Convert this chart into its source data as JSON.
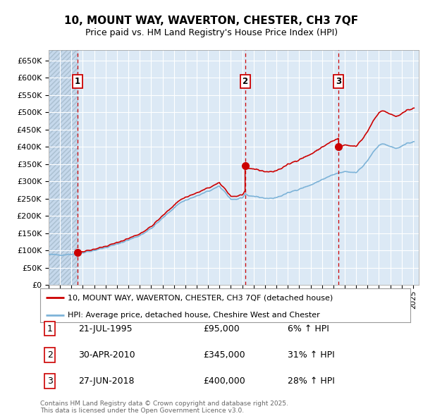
{
  "title": "10, MOUNT WAY, WAVERTON, CHESTER, CH3 7QF",
  "subtitle": "Price paid vs. HM Land Registry's House Price Index (HPI)",
  "legend_line1": "10, MOUNT WAY, WAVERTON, CHESTER, CH3 7QF (detached house)",
  "legend_line2": "HPI: Average price, detached house, Cheshire West and Chester",
  "sale1_date": "21-JUL-1995",
  "sale1_price": 95000,
  "sale1_label": "6% ↑ HPI",
  "sale2_date": "30-APR-2010",
  "sale2_price": 345000,
  "sale2_label": "31% ↑ HPI",
  "sale3_date": "27-JUN-2018",
  "sale3_price": 400000,
  "sale3_label": "28% ↑ HPI",
  "footer": "Contains HM Land Registry data © Crown copyright and database right 2025.\nThis data is licensed under the Open Government Licence v3.0.",
  "ylim": [
    0,
    680000
  ],
  "yticks": [
    0,
    50000,
    100000,
    150000,
    200000,
    250000,
    300000,
    350000,
    400000,
    450000,
    500000,
    550000,
    600000,
    650000
  ],
  "background_color": "#ffffff",
  "plot_bg_color": "#dce9f5",
  "grid_color": "#ffffff",
  "hatch_color": "#c5d8eb",
  "hpi_color": "#7db3d8",
  "sale_color": "#cc0000",
  "vline_color": "#cc0000",
  "marker_color": "#cc0000",
  "sale1_x": 1995.542,
  "sale2_x": 2010.25,
  "sale3_x": 2018.458
}
